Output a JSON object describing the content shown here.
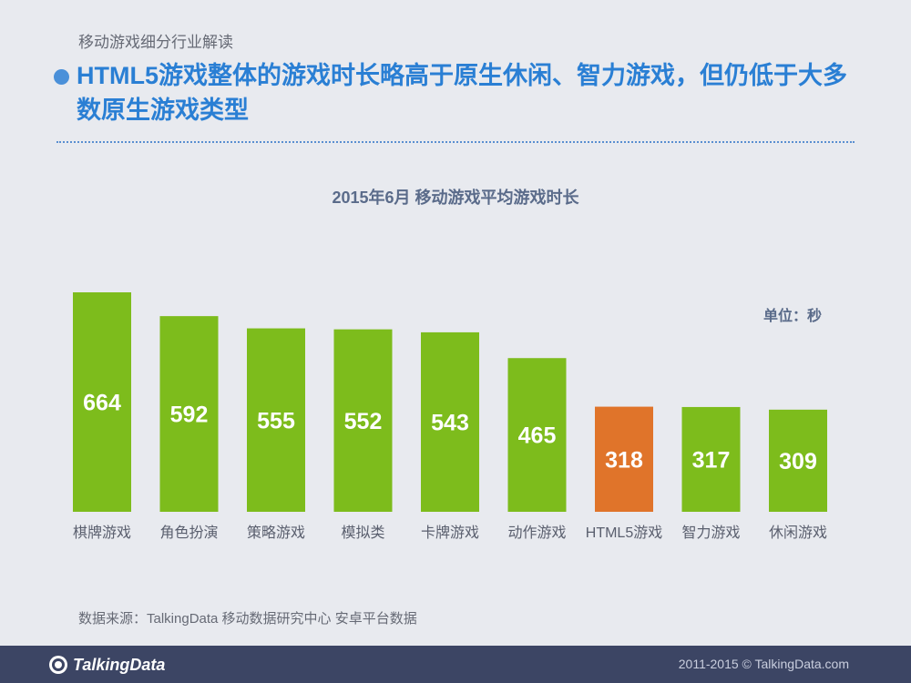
{
  "header": {
    "section_label": "移动游戏细分行业解读",
    "headline": "HTML5游戏整体的游戏时长略高于原生休闲、智力游戏，但仍低于大多数原生游戏类型"
  },
  "chart_data": {
    "type": "bar",
    "title": "2015年6月 移动游戏平均游戏时长",
    "unit_label": "单位：秒",
    "categories": [
      "棋牌游戏",
      "角色扮演",
      "策略游戏",
      "模拟类",
      "卡牌游戏",
      "动作游戏",
      "HTML5游戏",
      "智力游戏",
      "休闲游戏"
    ],
    "values": [
      664,
      592,
      555,
      552,
      543,
      465,
      318,
      317,
      309
    ],
    "highlight_category": "HTML5游戏",
    "colors": {
      "default": "#7dbc1c",
      "highlight": "#e0742a",
      "label": "#ffffff",
      "axis_text": "#5a5f6e"
    },
    "ylim": [
      0,
      664
    ],
    "xlabel": "",
    "ylabel": ""
  },
  "source": "数据来源：TalkingData 移动数据研究中心 安卓平台数据",
  "footer": {
    "logo_text": "TalkingData",
    "copyright": "2011-2015 © TalkingData.com"
  }
}
